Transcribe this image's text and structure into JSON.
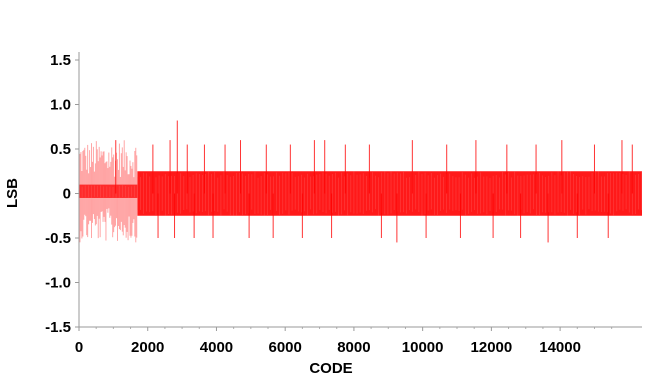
{
  "chart_data": {
    "type": "line",
    "title": "",
    "xlabel": "CODE",
    "ylabel": "LSB",
    "xlim": [
      0,
      16383
    ],
    "ylim": [
      -1.5,
      1.5
    ],
    "x_ticks": [
      0,
      2000,
      4000,
      6000,
      8000,
      10000,
      12000,
      14000
    ],
    "x_tick_labels": [
      "0",
      "2000",
      "4000",
      "6000",
      "8000",
      "10000",
      "12000",
      "14000"
    ],
    "y_ticks": [
      1.5,
      1.0,
      0.5,
      0,
      -0.5,
      -1.0,
      -1.5
    ],
    "y_tick_labels": [
      "1.5",
      "1.0",
      "0.5",
      "0",
      "-0.5",
      "-1.0",
      "-1.5"
    ],
    "grid": false,
    "series": [
      {
        "color": "#ff0000",
        "description_segments": [
          {
            "x_range": [
              0,
              1700
            ],
            "band": [
              -0.05,
              0.1
            ],
            "light_spikes_range": [
              -0.55,
              0.6
            ]
          },
          {
            "x_range": [
              1700,
              16383
            ],
            "band": [
              -0.25,
              0.25
            ]
          }
        ],
        "spikes": [
          {
            "x": 1070,
            "y": 0.6
          },
          {
            "x": 2150,
            "y": 0.55
          },
          {
            "x": 2300,
            "y": -0.5
          },
          {
            "x": 2650,
            "y": 0.6
          },
          {
            "x": 2780,
            "y": -0.5
          },
          {
            "x": 2860,
            "y": 0.82
          },
          {
            "x": 3150,
            "y": 0.55
          },
          {
            "x": 3350,
            "y": -0.5
          },
          {
            "x": 3650,
            "y": 0.55
          },
          {
            "x": 3900,
            "y": -0.5
          },
          {
            "x": 4250,
            "y": 0.55
          },
          {
            "x": 4700,
            "y": 0.6
          },
          {
            "x": 4950,
            "y": -0.5
          },
          {
            "x": 5450,
            "y": 0.55
          },
          {
            "x": 5650,
            "y": -0.5
          },
          {
            "x": 6150,
            "y": 0.55
          },
          {
            "x": 6500,
            "y": -0.5
          },
          {
            "x": 6850,
            "y": 0.6
          },
          {
            "x": 7150,
            "y": 0.6
          },
          {
            "x": 7350,
            "y": -0.5
          },
          {
            "x": 7750,
            "y": 0.55
          },
          {
            "x": 8450,
            "y": 0.55
          },
          {
            "x": 8800,
            "y": -0.5
          },
          {
            "x": 9250,
            "y": -0.55
          },
          {
            "x": 9700,
            "y": 0.6
          },
          {
            "x": 10100,
            "y": -0.5
          },
          {
            "x": 10700,
            "y": 0.55
          },
          {
            "x": 11100,
            "y": -0.5
          },
          {
            "x": 11550,
            "y": 0.6
          },
          {
            "x": 12050,
            "y": -0.5
          },
          {
            "x": 12450,
            "y": 0.55
          },
          {
            "x": 12850,
            "y": -0.5
          },
          {
            "x": 13300,
            "y": 0.55
          },
          {
            "x": 13650,
            "y": -0.55
          },
          {
            "x": 14050,
            "y": 0.6
          },
          {
            "x": 14500,
            "y": -0.5
          },
          {
            "x": 15000,
            "y": 0.55
          },
          {
            "x": 15400,
            "y": -0.5
          },
          {
            "x": 15800,
            "y": 0.6
          },
          {
            "x": 16100,
            "y": 0.55
          }
        ]
      }
    ]
  }
}
